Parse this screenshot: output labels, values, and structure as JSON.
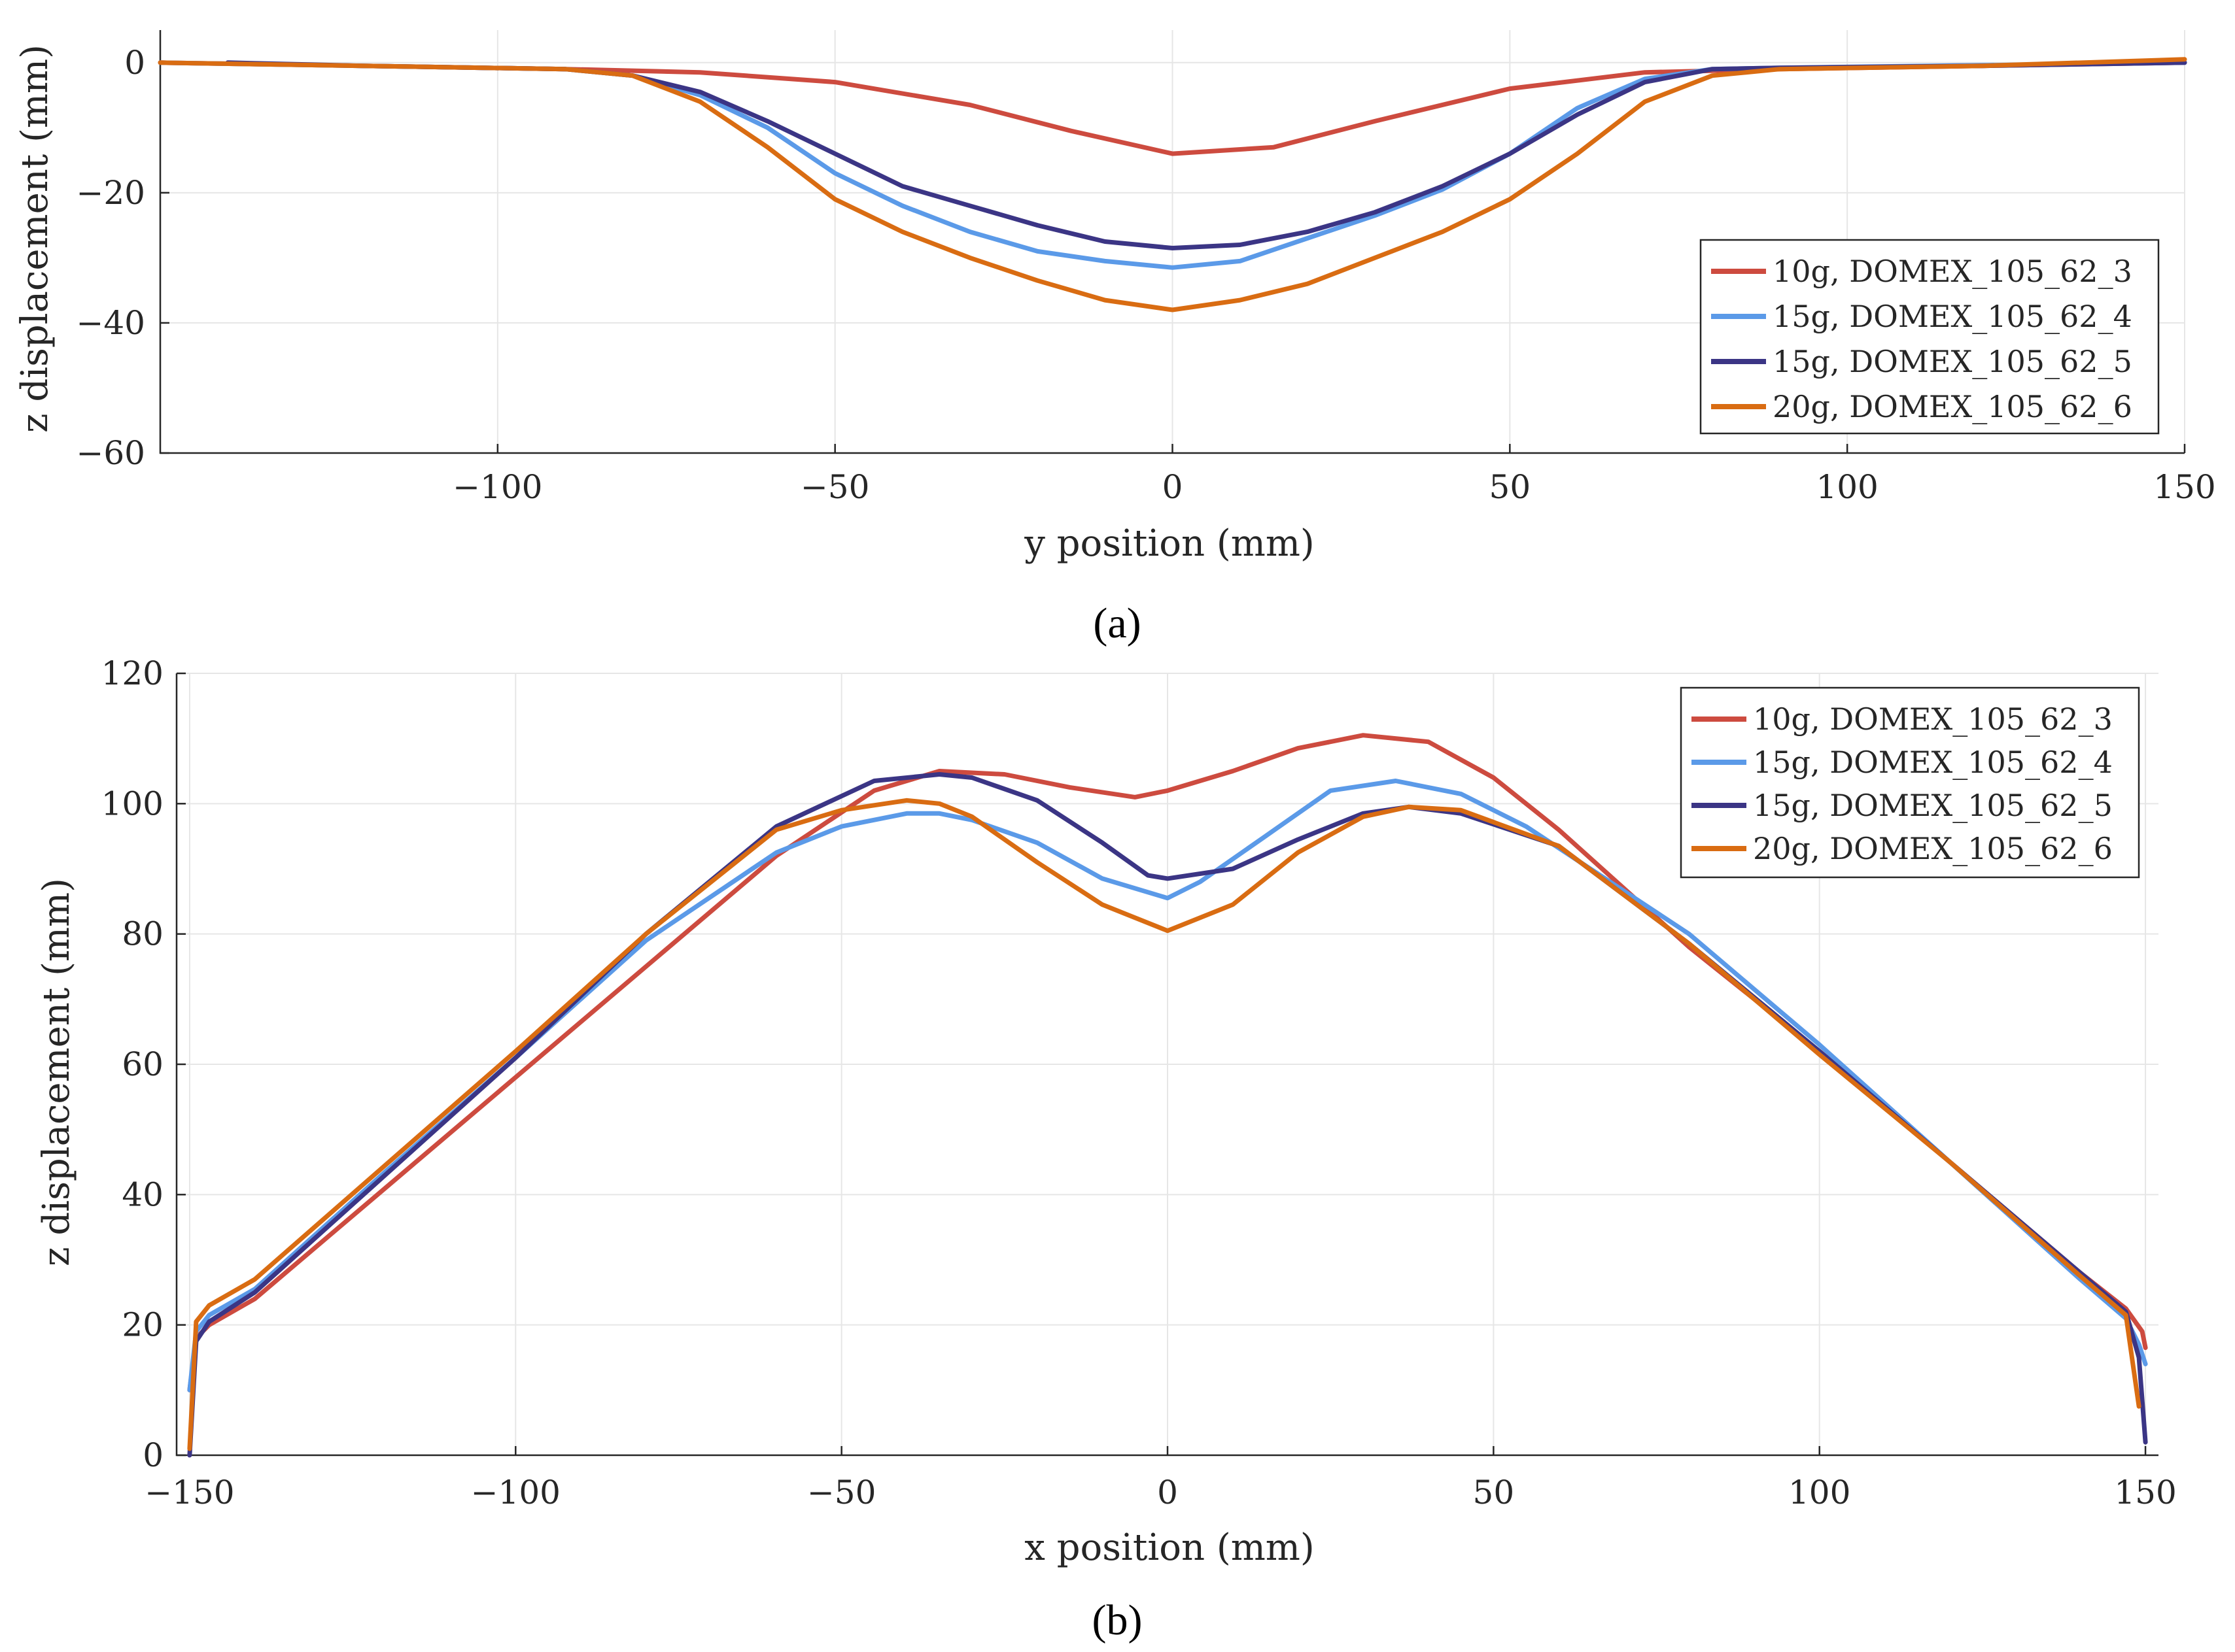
{
  "chart_data": [
    {
      "type": "line",
      "panel_label": "(a)",
      "xlabel": "y position (mm)",
      "ylabel": "z displacement (mm)",
      "xlim": [
        -150,
        150
      ],
      "ylim": [
        -60,
        5
      ],
      "xticks": [
        -100,
        -50,
        0,
        50,
        100,
        150
      ],
      "xtick_labels": [
        "−100",
        "−50",
        "0",
        "50",
        "100",
        "150"
      ],
      "yticks": [
        0,
        -20,
        -40,
        -60
      ],
      "ytick_labels": [
        "0",
        "−20",
        "−40",
        "−60"
      ],
      "grid": true,
      "legend_position": "lower-right",
      "series": [
        {
          "name": "10g, DOMEX_105_62_3",
          "color": "#cd4b3f",
          "x": [
            -150,
            -120,
            -90,
            -70,
            -50,
            -30,
            -15,
            0,
            15,
            30,
            50,
            70,
            90,
            120,
            150
          ],
          "y": [
            0,
            -0.5,
            -1,
            -1.5,
            -3,
            -6.5,
            -10.5,
            -14,
            -13,
            -9,
            -4,
            -1.5,
            -1,
            -0.5,
            0
          ]
        },
        {
          "name": "15g, DOMEX_105_62_4",
          "color": "#5b9ae8",
          "x": [
            -150,
            -120,
            -90,
            -80,
            -70,
            -60,
            -50,
            -40,
            -30,
            -20,
            -10,
            0,
            10,
            20,
            30,
            40,
            50,
            60,
            70,
            80,
            90,
            120,
            150
          ],
          "y": [
            0,
            -0.5,
            -1,
            -2,
            -5,
            -10,
            -17,
            -22,
            -26,
            -29,
            -30.5,
            -31.5,
            -30.5,
            -27,
            -23.5,
            -19.5,
            -14,
            -7,
            -2.5,
            -1,
            -0.8,
            -0.4,
            0
          ]
        },
        {
          "name": "15g, DOMEX_105_62_5",
          "color": "#3b3585",
          "x": [
            -140,
            -120,
            -90,
            -80,
            -70,
            -60,
            -50,
            -40,
            -30,
            -20,
            -10,
            0,
            10,
            20,
            30,
            40,
            50,
            60,
            70,
            80,
            90,
            120,
            150
          ],
          "y": [
            0,
            -0.5,
            -1,
            -2,
            -4.5,
            -9,
            -14,
            -19,
            -22,
            -25,
            -27.5,
            -28.5,
            -28,
            -26,
            -23,
            -19,
            -14,
            -8,
            -3,
            -1,
            -0.8,
            -0.5,
            0
          ]
        },
        {
          "name": "20g, DOMEX_105_62_6",
          "color": "#d96c12",
          "x": [
            -150,
            -120,
            -90,
            -80,
            -70,
            -60,
            -50,
            -40,
            -30,
            -20,
            -10,
            0,
            10,
            20,
            30,
            40,
            50,
            60,
            70,
            80,
            90,
            120,
            150
          ],
          "y": [
            0,
            -0.5,
            -1,
            -2,
            -6,
            -13,
            -21,
            -26,
            -30,
            -33.5,
            -36.5,
            -38,
            -36.5,
            -34,
            -30,
            -26,
            -21,
            -14,
            -6,
            -2,
            -1,
            -0.5,
            0.5
          ]
        }
      ]
    },
    {
      "type": "line",
      "panel_label": "(b)",
      "xlabel": "x position (mm)",
      "ylabel": "z displacement (mm)",
      "xlim": [
        -152,
        152
      ],
      "ylim": [
        0,
        120
      ],
      "xticks": [
        -150,
        -100,
        -50,
        0,
        50,
        100,
        150
      ],
      "xtick_labels": [
        "−150",
        "−100",
        "−50",
        "0",
        "50",
        "100",
        "150"
      ],
      "yticks": [
        0,
        20,
        40,
        60,
        80,
        100,
        120
      ],
      "ytick_labels": [
        "0",
        "20",
        "40",
        "60",
        "80",
        "100",
        "120"
      ],
      "grid": true,
      "legend_position": "top-right",
      "series": [
        {
          "name": "10g, DOMEX_105_62_3",
          "color": "#cd4b3f",
          "x": [
            -150,
            -149,
            -147,
            -140,
            -120,
            -100,
            -80,
            -60,
            -45,
            -35,
            -25,
            -15,
            -5,
            0,
            10,
            20,
            30,
            40,
            50,
            60,
            80,
            100,
            120,
            140,
            147,
            149.5,
            150
          ],
          "y": [
            10,
            18,
            20,
            24,
            41,
            58,
            75,
            92,
            102,
            105,
            104.5,
            102.5,
            101,
            102,
            105,
            108.5,
            110.5,
            109.5,
            104,
            96,
            78,
            62,
            45,
            28,
            22.5,
            19,
            16.5
          ]
        },
        {
          "name": "15g, DOMEX_105_62_4",
          "color": "#5b9ae8",
          "x": [
            -150,
            -149,
            -147,
            -140,
            -120,
            -100,
            -80,
            -60,
            -50,
            -40,
            -35,
            -30,
            -20,
            -10,
            0,
            5,
            15,
            25,
            35,
            45,
            55,
            80,
            100,
            120,
            140,
            147,
            149,
            150
          ],
          "y": [
            10,
            19,
            21.5,
            25.5,
            43.5,
            61,
            79,
            92.5,
            96.5,
            98.5,
            98.5,
            97.5,
            94,
            88.5,
            85.5,
            88,
            95,
            102,
            103.5,
            101.5,
            96.5,
            80,
            63,
            45,
            27,
            21,
            17,
            14
          ]
        },
        {
          "name": "15g, DOMEX_105_62_5",
          "color": "#3b3585",
          "x": [
            -150,
            -149,
            -147,
            -140,
            -120,
            -100,
            -80,
            -60,
            -45,
            -35,
            -30,
            -20,
            -10,
            -3,
            0,
            10,
            20,
            30,
            37,
            45,
            60,
            80,
            100,
            120,
            140,
            147,
            149,
            150
          ],
          "y": [
            0,
            17.5,
            20.5,
            25,
            43,
            61,
            80,
            96.5,
            103.5,
            104.5,
            104,
            100.5,
            94,
            89,
            88.5,
            90,
            94.5,
            98.5,
            99.5,
            98.5,
            93.5,
            78.5,
            62,
            45,
            28,
            22,
            15,
            2
          ]
        },
        {
          "name": "20g, DOMEX_105_62_6",
          "color": "#d96c12",
          "x": [
            -150,
            -149,
            -147,
            -140,
            -120,
            -100,
            -80,
            -60,
            -50,
            -40,
            -35,
            -30,
            -20,
            -10,
            0,
            10,
            20,
            30,
            37,
            45,
            60,
            80,
            100,
            120,
            140,
            147,
            149
          ],
          "y": [
            1,
            20.5,
            23,
            27,
            44.5,
            62,
            80,
            96,
            99,
            100.5,
            100,
            98,
            91,
            84.5,
            80.5,
            84.5,
            92.5,
            98,
            99.5,
            99,
            93.5,
            78.5,
            61.5,
            45,
            27.5,
            21.5,
            7.5
          ]
        }
      ]
    }
  ]
}
